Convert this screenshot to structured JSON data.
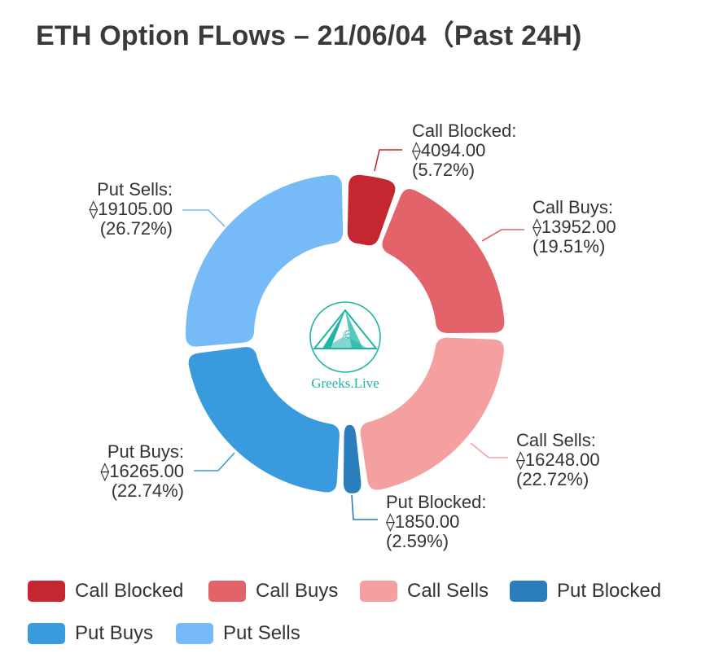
{
  "title": "ETH Option FLows – 21/06/04（Past 24H)",
  "currency_symbol": "⟠",
  "logo": {
    "text": "Greeks.Live",
    "accent": "#1fb5a5"
  },
  "chart_data": {
    "type": "pie",
    "variant": "donut",
    "legend_position": "bottom",
    "slices": [
      {
        "name": "Call Blocked",
        "value": 4094.0,
        "value_label": "⟠4094.00",
        "percent_label": "(5.72%)",
        "color": "#c4272f"
      },
      {
        "name": "Call Buys",
        "value": 13952.0,
        "value_label": "⟠13952.00",
        "percent_label": "(19.51%)",
        "color": "#e2636a"
      },
      {
        "name": "Call Sells",
        "value": 16248.0,
        "value_label": "⟠16248.00",
        "percent_label": "(22.72%)",
        "color": "#f4a0a0"
      },
      {
        "name": "Put Blocked",
        "value": 1850.0,
        "value_label": "⟠1850.00",
        "percent_label": "(2.59%)",
        "color": "#2a7ebc"
      },
      {
        "name": "Put Buys",
        "value": 16265.0,
        "value_label": "⟠16265.00",
        "percent_label": "(22.74%)",
        "color": "#3a9ade"
      },
      {
        "name": "Put Sells",
        "value": 19105.0,
        "value_label": "⟠19105.00",
        "percent_label": "(26.72%)",
        "color": "#76bbf8"
      }
    ]
  }
}
